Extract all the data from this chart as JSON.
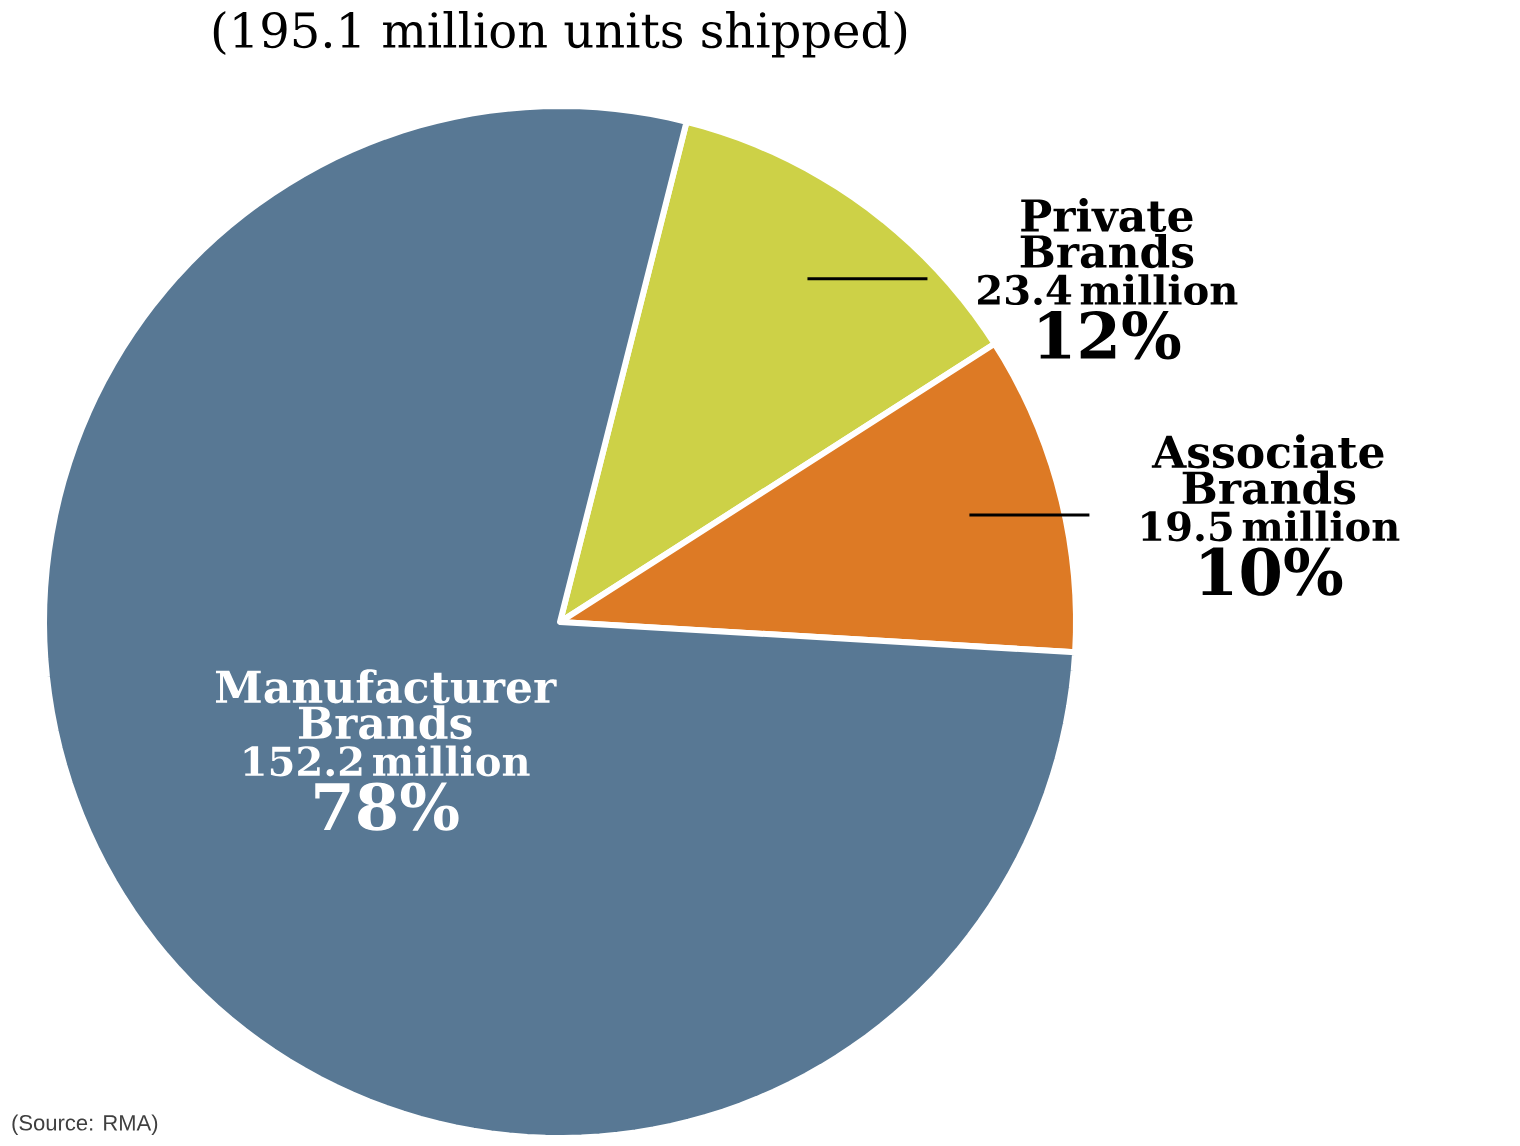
{
  "chart_data": {
    "type": "pie",
    "title": "(195.1 million units shipped)",
    "categories": [
      "Private Brands",
      "Associate Brands",
      "Manufacturer Brands"
    ],
    "values": [
      23.4,
      19.5,
      152.2
    ],
    "colors": [
      "#cdd147",
      "#dd7a25",
      "#587894"
    ],
    "value_labels": [
      "23.4 million",
      "19.5 million",
      "152.2 million"
    ],
    "annotations": [
      "12%",
      "10%",
      "78%",
      "(Source: RMA)"
    ]
  }
}
